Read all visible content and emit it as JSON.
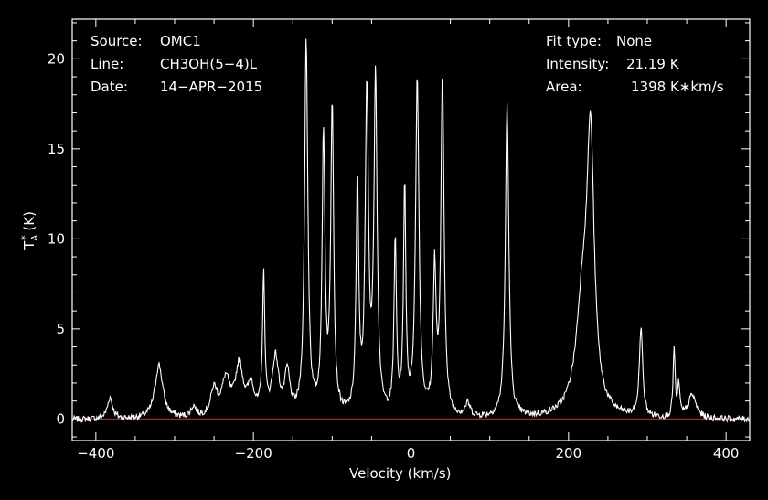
{
  "info_left": {
    "source_label": "Source:",
    "source_value": "OMC1",
    "line_label": "Line:",
    "line_value": "CH3OH(5−4)L",
    "date_label": "Date:",
    "date_value": "14−APR−2015"
  },
  "info_right": {
    "fit_label": "Fit type:",
    "fit_value": "None",
    "intensity_label": "Intensity:",
    "intensity_value": "21.19 K",
    "area_label": "Area:",
    "area_value": "1398 K∗km/s"
  },
  "chart_data": {
    "type": "line",
    "xlabel": "Velocity (km/s)",
    "ylabel_main": "T",
    "ylabel_sub": "A",
    "ylabel_sup": "*",
    "ylabel_unit": "(K)",
    "xlim": [
      -430,
      430
    ],
    "ylim": [
      -1.2,
      22.2
    ],
    "xticks": [
      -400,
      -200,
      0,
      200,
      400
    ],
    "xtick_labels": [
      "−400",
      "−200",
      "0",
      "200",
      "400"
    ],
    "yticks": [
      0,
      5,
      10,
      15,
      20
    ],
    "ytick_labels": [
      "0",
      "5",
      "10",
      "15",
      "20"
    ],
    "baseline": 0,
    "colors": {
      "trace": "#ffffff",
      "baseline": "#ff0000",
      "axes": "#ffffff",
      "background": "#000000"
    },
    "peaks": [
      {
        "v": -382,
        "h": 1.2,
        "w": 4
      },
      {
        "v": -320,
        "h": 3.0,
        "w": 6
      },
      {
        "v": -276,
        "h": 0.6,
        "w": 4
      },
      {
        "v": -250,
        "h": 1.5,
        "w": 5
      },
      {
        "v": -235,
        "h": 2.0,
        "w": 6
      },
      {
        "v": -218,
        "h": 2.8,
        "w": 6
      },
      {
        "v": -203,
        "h": 1.6,
        "w": 5
      },
      {
        "v": -187,
        "h": 7.6,
        "w": 1.8
      },
      {
        "v": -172,
        "h": 3.2,
        "w": 5
      },
      {
        "v": -157,
        "h": 2.3,
        "w": 4
      },
      {
        "v": -133,
        "h": 20.8,
        "w": 2.5
      },
      {
        "v": -111,
        "h": 15.4,
        "w": 2.2
      },
      {
        "v": -100,
        "h": 17.2,
        "w": 2.2
      },
      {
        "v": -68,
        "h": 12.8,
        "w": 2.0
      },
      {
        "v": -56,
        "h": 17.8,
        "w": 2.4
      },
      {
        "v": -45,
        "h": 18.8,
        "w": 2.4
      },
      {
        "v": -20,
        "h": 9.6,
        "w": 1.8
      },
      {
        "v": -8,
        "h": 12.6,
        "w": 1.8
      },
      {
        "v": 8,
        "h": 18.8,
        "w": 2.6
      },
      {
        "v": 30,
        "h": 8.0,
        "w": 2.2
      },
      {
        "v": 40,
        "h": 18.8,
        "w": 2.4
      },
      {
        "v": 72,
        "h": 0.7,
        "w": 4
      },
      {
        "v": 122,
        "h": 17.4,
        "w": 2.6
      },
      {
        "v": 218,
        "h": 6.0,
        "w": 10
      },
      {
        "v": 228,
        "h": 14.0,
        "w": 5.5
      },
      {
        "v": 292,
        "h": 5.0,
        "w": 2.5
      },
      {
        "v": 334,
        "h": 3.8,
        "w": 1.5
      },
      {
        "v": 340,
        "h": 1.8,
        "w": 1.5
      },
      {
        "v": 357,
        "h": 1.3,
        "w": 6
      }
    ]
  }
}
